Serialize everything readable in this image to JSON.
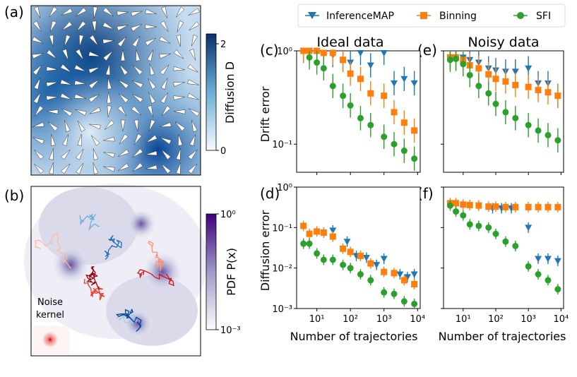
{
  "colors": {
    "inferencemap": "#1f77b4",
    "binning": "#ff7f0e",
    "sfi": "#2ca02c",
    "diffusion_map": "#08519c",
    "pdf_map": "#4a1486",
    "noise_kernel": "#cc0000"
  },
  "panels": {
    "a": "(a)",
    "b": "(b)",
    "c": "(c)",
    "d": "(d)",
    "e": "(e)",
    "f": "(f)"
  },
  "colorbar_a": {
    "label": "Diffusion D",
    "ticks": [
      "0",
      "2"
    ]
  },
  "colorbar_b": {
    "label": "PDF P(x)",
    "ticks": [
      "10⁰",
      "10⁻³"
    ]
  },
  "noise_kernel_label": [
    "Noise",
    "kernel"
  ],
  "legend": {
    "items": [
      "InferenceMAP",
      "Binning",
      "SFI"
    ]
  },
  "titles": {
    "ideal": "Ideal data",
    "noisy": "Noisy data"
  },
  "ylabels": {
    "drift": "Drift error",
    "diffusion": "Diffusion error"
  },
  "xlabel": "Number of trajectories",
  "xticks": [
    "10¹",
    "10²",
    "10³",
    "10⁴"
  ],
  "yticks_drift": [
    "10⁰",
    "10⁻¹"
  ],
  "yticks_diff": [
    "10⁰",
    "10⁻¹",
    "10⁻²",
    "10⁻³"
  ],
  "chart_data": [
    {
      "panel": "(c)",
      "type": "scatter",
      "title": "Ideal data",
      "xlabel": "",
      "ylabel": "Drift error",
      "xscale": "log",
      "yscale": "log",
      "xlim": [
        2.5,
        12000
      ],
      "ylim": [
        0.05,
        1.0
      ],
      "series": [
        {
          "name": "InferenceMAP",
          "marker": "triangle-down",
          "points": [
            [
              4,
              1.0
            ],
            [
              6,
              1.0
            ],
            [
              10,
              1.0
            ],
            [
              16,
              0.95
            ],
            [
              30,
              0.9
            ],
            [
              60,
              0.8
            ],
            [
              100,
              0.75
            ],
            [
              200,
              0.95
            ],
            [
              400,
              0.7
            ],
            [
              1000,
              0.95
            ],
            [
              2000,
              0.45
            ],
            [
              4000,
              0.5
            ],
            [
              8000,
              0.45
            ]
          ]
        },
        {
          "name": "Binning",
          "marker": "square",
          "points": [
            [
              4,
              1.0
            ],
            [
              6,
              1.0
            ],
            [
              10,
              1.0
            ],
            [
              16,
              0.95
            ],
            [
              30,
              0.95
            ],
            [
              60,
              0.8
            ],
            [
              100,
              0.57
            ],
            [
              200,
              0.5
            ],
            [
              400,
              0.35
            ],
            [
              1000,
              0.33
            ],
            [
              2000,
              0.22
            ],
            [
              4000,
              0.17
            ],
            [
              8000,
              0.14
            ]
          ]
        },
        {
          "name": "SFI",
          "marker": "circle",
          "points": [
            [
              6,
              0.85
            ],
            [
              10,
              0.75
            ],
            [
              16,
              0.65
            ],
            [
              30,
              0.42
            ],
            [
              60,
              0.33
            ],
            [
              100,
              0.26
            ],
            [
              200,
              0.19
            ],
            [
              400,
              0.16
            ],
            [
              1000,
              0.12
            ],
            [
              2000,
              0.1
            ],
            [
              4000,
              0.085
            ],
            [
              8000,
              0.07
            ]
          ]
        }
      ]
    },
    {
      "panel": "(e)",
      "type": "scatter",
      "title": "Noisy data",
      "xlabel": "",
      "ylabel": "",
      "xscale": "log",
      "yscale": "log",
      "xlim": [
        2.5,
        12000
      ],
      "ylim": [
        0.05,
        1.0
      ],
      "series": [
        {
          "name": "InferenceMAP",
          "marker": "triangle-down",
          "points": [
            [
              4,
              0.85
            ],
            [
              6,
              0.85
            ],
            [
              10,
              0.85
            ],
            [
              16,
              0.8
            ],
            [
              30,
              0.75
            ],
            [
              60,
              0.65
            ],
            [
              100,
              0.62
            ],
            [
              200,
              0.6
            ],
            [
              400,
              0.6
            ],
            [
              1000,
              0.65
            ],
            [
              2000,
              0.45
            ],
            [
              4000,
              0.45
            ],
            [
              8000,
              0.33
            ]
          ]
        },
        {
          "name": "Binning",
          "marker": "square",
          "points": [
            [
              4,
              0.85
            ],
            [
              6,
              0.85
            ],
            [
              10,
              0.8
            ],
            [
              16,
              0.7
            ],
            [
              30,
              0.65
            ],
            [
              60,
              0.56
            ],
            [
              100,
              0.5
            ],
            [
              200,
              0.47
            ],
            [
              400,
              0.43
            ],
            [
              1000,
              0.41
            ],
            [
              2000,
              0.38
            ],
            [
              4000,
              0.36
            ],
            [
              8000,
              0.33
            ]
          ]
        },
        {
          "name": "SFI",
          "marker": "circle",
          "points": [
            [
              4,
              0.8
            ],
            [
              6,
              0.82
            ],
            [
              10,
              0.72
            ],
            [
              16,
              0.55
            ],
            [
              30,
              0.42
            ],
            [
              60,
              0.35
            ],
            [
              100,
              0.27
            ],
            [
              200,
              0.22
            ],
            [
              400,
              0.19
            ],
            [
              1000,
              0.16
            ],
            [
              2000,
              0.14
            ],
            [
              4000,
              0.125
            ],
            [
              8000,
              0.11
            ]
          ]
        }
      ]
    },
    {
      "panel": "(d)",
      "type": "scatter",
      "title": "",
      "xlabel": "Number of trajectories",
      "ylabel": "Diffusion error",
      "xscale": "log",
      "yscale": "log",
      "xlim": [
        2.5,
        12000
      ],
      "ylim": [
        0.001,
        1.0
      ],
      "series": [
        {
          "name": "InferenceMAP",
          "marker": "triangle-down",
          "points": [
            [
              30,
              0.085
            ],
            [
              80,
              0.045
            ],
            [
              150,
              0.02
            ],
            [
              300,
              0.018
            ],
            [
              600,
              0.012
            ],
            [
              1000,
              0.017
            ],
            [
              3000,
              0.007
            ],
            [
              5000,
              0.006
            ],
            [
              8000,
              0.007
            ]
          ]
        },
        {
          "name": "Binning",
          "marker": "square",
          "points": [
            [
              4,
              0.11
            ],
            [
              6,
              0.07
            ],
            [
              10,
              0.08
            ],
            [
              16,
              0.075
            ],
            [
              30,
              0.06
            ],
            [
              60,
              0.03
            ],
            [
              100,
              0.025
            ],
            [
              200,
              0.02
            ],
            [
              400,
              0.013
            ],
            [
              1000,
              0.008
            ],
            [
              2000,
              0.0075
            ],
            [
              4000,
              0.005
            ],
            [
              8000,
              0.004
            ]
          ]
        },
        {
          "name": "SFI",
          "marker": "circle",
          "points": [
            [
              4,
              0.04
            ],
            [
              6,
              0.04
            ],
            [
              10,
              0.023
            ],
            [
              16,
              0.016
            ],
            [
              30,
              0.016
            ],
            [
              60,
              0.012
            ],
            [
              100,
              0.01
            ],
            [
              200,
              0.007
            ],
            [
              400,
              0.005
            ],
            [
              1000,
              0.0025
            ],
            [
              2000,
              0.0023
            ],
            [
              4000,
              0.0015
            ],
            [
              8000,
              0.0013
            ]
          ]
        }
      ]
    },
    {
      "panel": "(f)",
      "type": "scatter",
      "title": "",
      "xlabel": "Number of trajectories",
      "ylabel": "",
      "xscale": "log",
      "yscale": "log",
      "xlim": [
        2.5,
        12000
      ],
      "ylim": [
        0.001,
        1.0
      ],
      "series": [
        {
          "name": "InferenceMAP",
          "marker": "triangle-down",
          "points": [
            [
              30,
              0.35
            ],
            [
              80,
              0.3
            ],
            [
              150,
              0.3
            ],
            [
              300,
              0.3
            ],
            [
              1000,
              0.1
            ],
            [
              2000,
              0.017
            ],
            [
              4000,
              0.017
            ],
            [
              8000,
              0.015
            ]
          ]
        },
        {
          "name": "Binning",
          "marker": "square",
          "points": [
            [
              4,
              0.4
            ],
            [
              6,
              0.4
            ],
            [
              10,
              0.37
            ],
            [
              16,
              0.36
            ],
            [
              30,
              0.35
            ],
            [
              60,
              0.33
            ],
            [
              100,
              0.33
            ],
            [
              200,
              0.32
            ],
            [
              400,
              0.32
            ],
            [
              1000,
              0.32
            ],
            [
              2000,
              0.32
            ],
            [
              4000,
              0.32
            ],
            [
              8000,
              0.32
            ]
          ]
        },
        {
          "name": "SFI",
          "marker": "circle",
          "points": [
            [
              4,
              0.35
            ],
            [
              6,
              0.25
            ],
            [
              10,
              0.2
            ],
            [
              16,
              0.12
            ],
            [
              30,
              0.11
            ],
            [
              60,
              0.1
            ],
            [
              100,
              0.07
            ],
            [
              200,
              0.045
            ],
            [
              400,
              0.035
            ],
            [
              1000,
              0.011
            ],
            [
              2000,
              0.007
            ],
            [
              4000,
              0.005
            ],
            [
              8000,
              0.003
            ]
          ]
        }
      ]
    }
  ]
}
